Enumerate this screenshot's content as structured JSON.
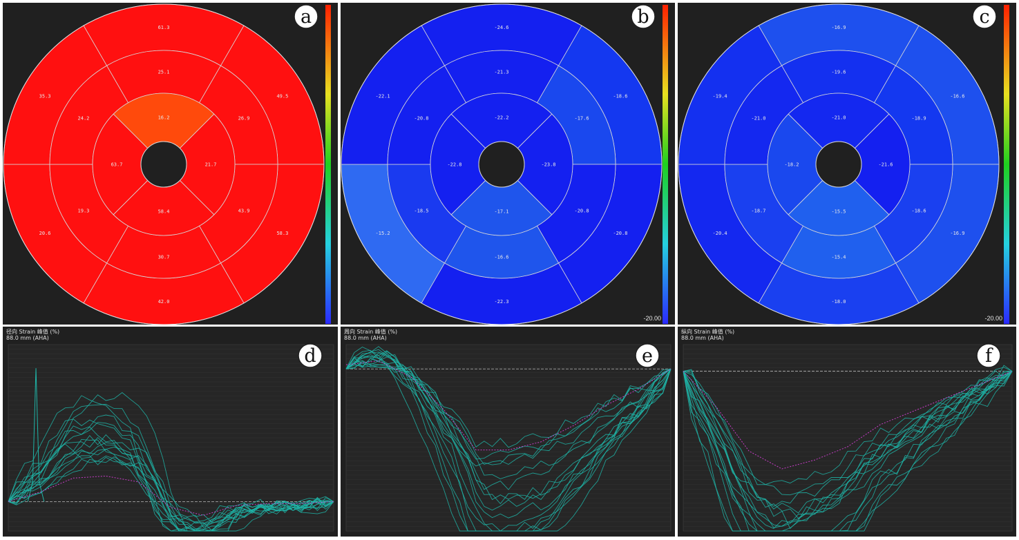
{
  "bullseyes": [
    {
      "id": "a",
      "badge": "a",
      "colorbar_min_label": "",
      "seg_fill_default": "#ff1010",
      "segments": {
        "basal": [
          {
            "v": "61.3",
            "c": "#ff1010"
          },
          {
            "v": "49.5",
            "c": "#ff1010"
          },
          {
            "v": "58.3",
            "c": "#ff1010"
          },
          {
            "v": "42.0",
            "c": "#ff1010"
          },
          {
            "v": "20.6",
            "c": "#ff1010"
          },
          {
            "v": "35.3",
            "c": "#ff1010"
          }
        ],
        "mid": [
          {
            "v": "25.1",
            "c": "#ff1010"
          },
          {
            "v": "26.9",
            "c": "#ff1010"
          },
          {
            "v": "43.9",
            "c": "#ff1010"
          },
          {
            "v": "30.7",
            "c": "#ff1010"
          },
          {
            "v": "19.3",
            "c": "#ff1010"
          },
          {
            "v": "24.2",
            "c": "#ff1010"
          }
        ],
        "apical": [
          {
            "v": "16.2",
            "c": "#ff4a0c"
          },
          {
            "v": "21.7",
            "c": "#ff1010"
          },
          {
            "v": "58.4",
            "c": "#ff1010"
          },
          {
            "v": "63.7",
            "c": "#ff1010"
          }
        ]
      }
    },
    {
      "id": "b",
      "badge": "b",
      "colorbar_min_label": "-20.00",
      "segments": {
        "basal": [
          {
            "v": "-24.6",
            "c": "#1420f0"
          },
          {
            "v": "-18.6",
            "c": "#1438f0"
          },
          {
            "v": "-20.8",
            "c": "#1420f0"
          },
          {
            "v": "-22.3",
            "c": "#1420f0"
          },
          {
            "v": "-15.2",
            "c": "#2f6af2"
          },
          {
            "v": "-22.1",
            "c": "#1420f0"
          }
        ],
        "mid": [
          {
            "v": "-21.3",
            "c": "#1420f0"
          },
          {
            "v": "-17.6",
            "c": "#1a48ee"
          },
          {
            "v": "-20.8",
            "c": "#1420f0"
          },
          {
            "v": "-16.6",
            "c": "#1f55ec"
          },
          {
            "v": "-18.5",
            "c": "#1a3af0"
          },
          {
            "v": "-20.8",
            "c": "#1420f0"
          }
        ],
        "apical": [
          {
            "v": "-22.2",
            "c": "#1420f0"
          },
          {
            "v": "-23.8",
            "c": "#1420f0"
          },
          {
            "v": "-17.1",
            "c": "#1f55ec"
          },
          {
            "v": "-22.8",
            "c": "#1420f0"
          }
        ]
      }
    },
    {
      "id": "c",
      "badge": "c",
      "colorbar_min_label": "-20.00",
      "segments": {
        "basal": [
          {
            "v": "-16.9",
            "c": "#1e50ee"
          },
          {
            "v": "-16.6",
            "c": "#1e50ee"
          },
          {
            "v": "-16.9",
            "c": "#1e50ee"
          },
          {
            "v": "-18.0",
            "c": "#1a40f0"
          },
          {
            "v": "-20.4",
            "c": "#1428f0"
          },
          {
            "v": "-19.4",
            "c": "#1430f0"
          }
        ],
        "mid": [
          {
            "v": "-19.6",
            "c": "#1430f0"
          },
          {
            "v": "-18.9",
            "c": "#1438f0"
          },
          {
            "v": "-18.6",
            "c": "#1a40f0"
          },
          {
            "v": "-15.4",
            "c": "#2060ee"
          },
          {
            "v": "-18.7",
            "c": "#1a40f0"
          },
          {
            "v": "-21.0",
            "c": "#1428f0"
          }
        ],
        "apical": [
          {
            "v": "-21.0",
            "c": "#1428f0"
          },
          {
            "v": "-21.6",
            "c": "#1420f0"
          },
          {
            "v": "-15.5",
            "c": "#2060ee"
          },
          {
            "v": "-18.2",
            "c": "#1a48ee"
          }
        ]
      }
    }
  ],
  "curves": [
    {
      "id": "d",
      "badge": "d",
      "title_line1": "径向 Strain 峰值 (%)",
      "title_line2": "88.0 mm (AHA)",
      "colors": {
        "series": "#1fb5a8",
        "global": "#c83cc8",
        "axis": "#bbbbbb"
      },
      "chart_data": {
        "type": "line",
        "y_range": [
          -15,
          80
        ],
        "x_range": [
          0,
          1000
        ],
        "series_count": 16,
        "global_curve": [
          [
            0,
            0
          ],
          [
            100,
            5
          ],
          [
            200,
            12
          ],
          [
            300,
            13
          ],
          [
            400,
            10
          ],
          [
            500,
            -3
          ],
          [
            600,
            -7
          ],
          [
            700,
            -2
          ],
          [
            800,
            -1
          ],
          [
            900,
            -1
          ],
          [
            1000,
            0
          ]
        ]
      }
    },
    {
      "id": "e",
      "badge": "e",
      "title_line1": "周向 Strain 峰值 (%)",
      "title_line2": "88.0 mm (AHA)",
      "colors": {
        "series": "#1fb5a8",
        "global": "#c83cc8",
        "axis": "#bbbbbb"
      },
      "chart_data": {
        "type": "line",
        "y_range": [
          -40,
          6
        ],
        "x_range": [
          0,
          1000
        ],
        "series_count": 16,
        "global_curve": [
          [
            0,
            1
          ],
          [
            100,
            2
          ],
          [
            200,
            -2
          ],
          [
            300,
            -10
          ],
          [
            400,
            -20
          ],
          [
            500,
            -20
          ],
          [
            600,
            -18
          ],
          [
            700,
            -14
          ],
          [
            800,
            -9
          ],
          [
            900,
            -5
          ],
          [
            1000,
            0
          ]
        ]
      }
    },
    {
      "id": "f",
      "badge": "f",
      "title_line1": "纵向 Strain 峰值 (%)",
      "title_line2": "88.0 mm (AHA)",
      "colors": {
        "series": "#1fb5a8",
        "global": "#c83cc8",
        "axis": "#bbbbbb"
      },
      "chart_data": {
        "type": "line",
        "y_range": [
          -36,
          6
        ],
        "x_range": [
          0,
          1000
        ],
        "series_count": 16,
        "global_curve": [
          [
            0,
            0
          ],
          [
            100,
            -8
          ],
          [
            200,
            -18
          ],
          [
            300,
            -22
          ],
          [
            400,
            -20
          ],
          [
            500,
            -17
          ],
          [
            600,
            -12
          ],
          [
            700,
            -9
          ],
          [
            800,
            -6
          ],
          [
            900,
            -3
          ],
          [
            1000,
            0
          ]
        ]
      }
    }
  ]
}
